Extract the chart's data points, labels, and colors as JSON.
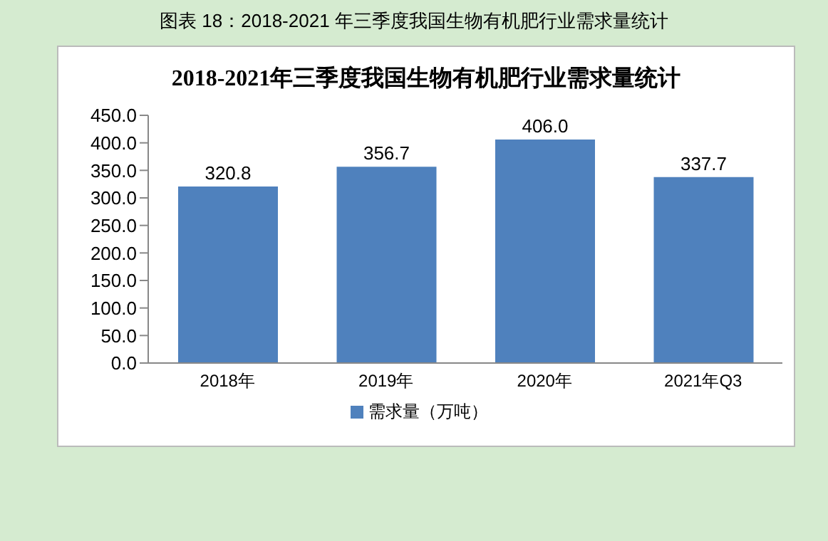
{
  "chart_data": {
    "type": "bar",
    "title": "2018-2021年三季度我国生物有机肥行业需求量统计",
    "annotations": [
      "图表 18：2018-2021 年三季度我国生物有机肥行业需求量统计"
    ],
    "categories": [
      "2018年",
      "2019年",
      "2020年",
      "2021年Q3"
    ],
    "series": [
      {
        "name": "需求量（万吨）",
        "color": "#4f81bd",
        "values": [
          320.8,
          356.7,
          406.0,
          337.7
        ],
        "value_labels": [
          "320.8",
          "356.7",
          "406.0",
          "337.7"
        ]
      }
    ],
    "ylim": [
      0,
      450
    ],
    "yticks": [
      {
        "value": 0,
        "label": "0.0"
      },
      {
        "value": 50,
        "label": "50.0"
      },
      {
        "value": 100,
        "label": "100.0"
      },
      {
        "value": 150,
        "label": "150.0"
      },
      {
        "value": 200,
        "label": "200.0"
      },
      {
        "value": 250,
        "label": "250.0"
      },
      {
        "value": 300,
        "label": "300.0"
      },
      {
        "value": 350,
        "label": "350.0"
      },
      {
        "value": 400,
        "label": "400.0"
      },
      {
        "value": 450,
        "label": "450.0"
      }
    ],
    "legend": "bottom",
    "grid": false
  }
}
